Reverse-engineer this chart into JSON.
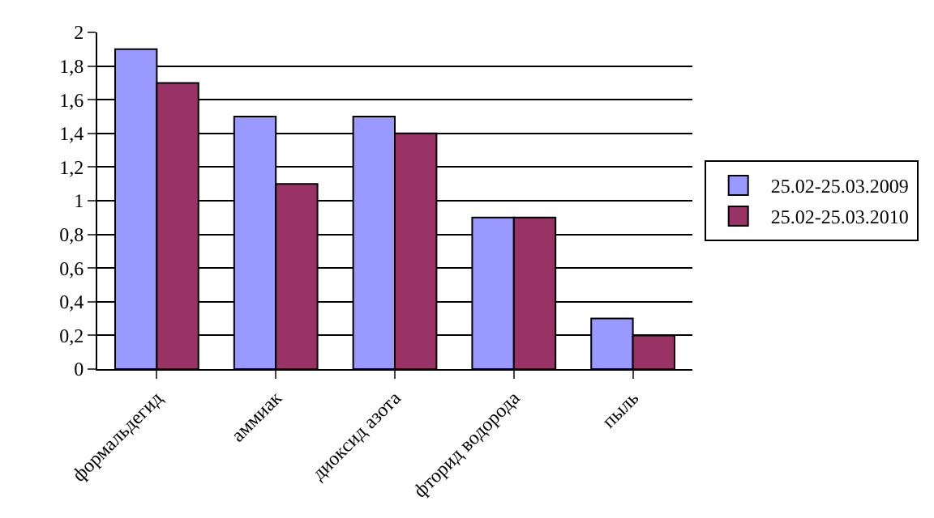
{
  "chart_data": {
    "type": "bar",
    "categories": [
      "формальдегид",
      "аммиак",
      "диоксид азота",
      "фторид водорода",
      "пыль"
    ],
    "series": [
      {
        "name": "25.02-25.03.2009",
        "color": "#9999ff",
        "values": [
          1.9,
          1.5,
          1.5,
          0.9,
          0.3
        ]
      },
      {
        "name": "25.02-25.03.2010",
        "color": "#993366",
        "values": [
          1.7,
          1.1,
          1.4,
          0.9,
          0.2
        ]
      }
    ],
    "ylim": [
      0,
      2
    ],
    "yticks": [
      0,
      {
        "value": 0.2,
        "label": "0,2"
      },
      {
        "value": 0.4,
        "label": "0,4"
      },
      {
        "value": 0.6,
        "label": "0,6"
      },
      {
        "value": 0.8,
        "label": "0,8"
      },
      1,
      {
        "value": 1.2,
        "label": "1,2"
      },
      {
        "value": 1.4,
        "label": "1,4"
      },
      {
        "value": 1.6,
        "label": "1,6"
      },
      {
        "value": 1.8,
        "label": "1,8"
      },
      2
    ],
    "grid": "y",
    "legend": "right"
  }
}
